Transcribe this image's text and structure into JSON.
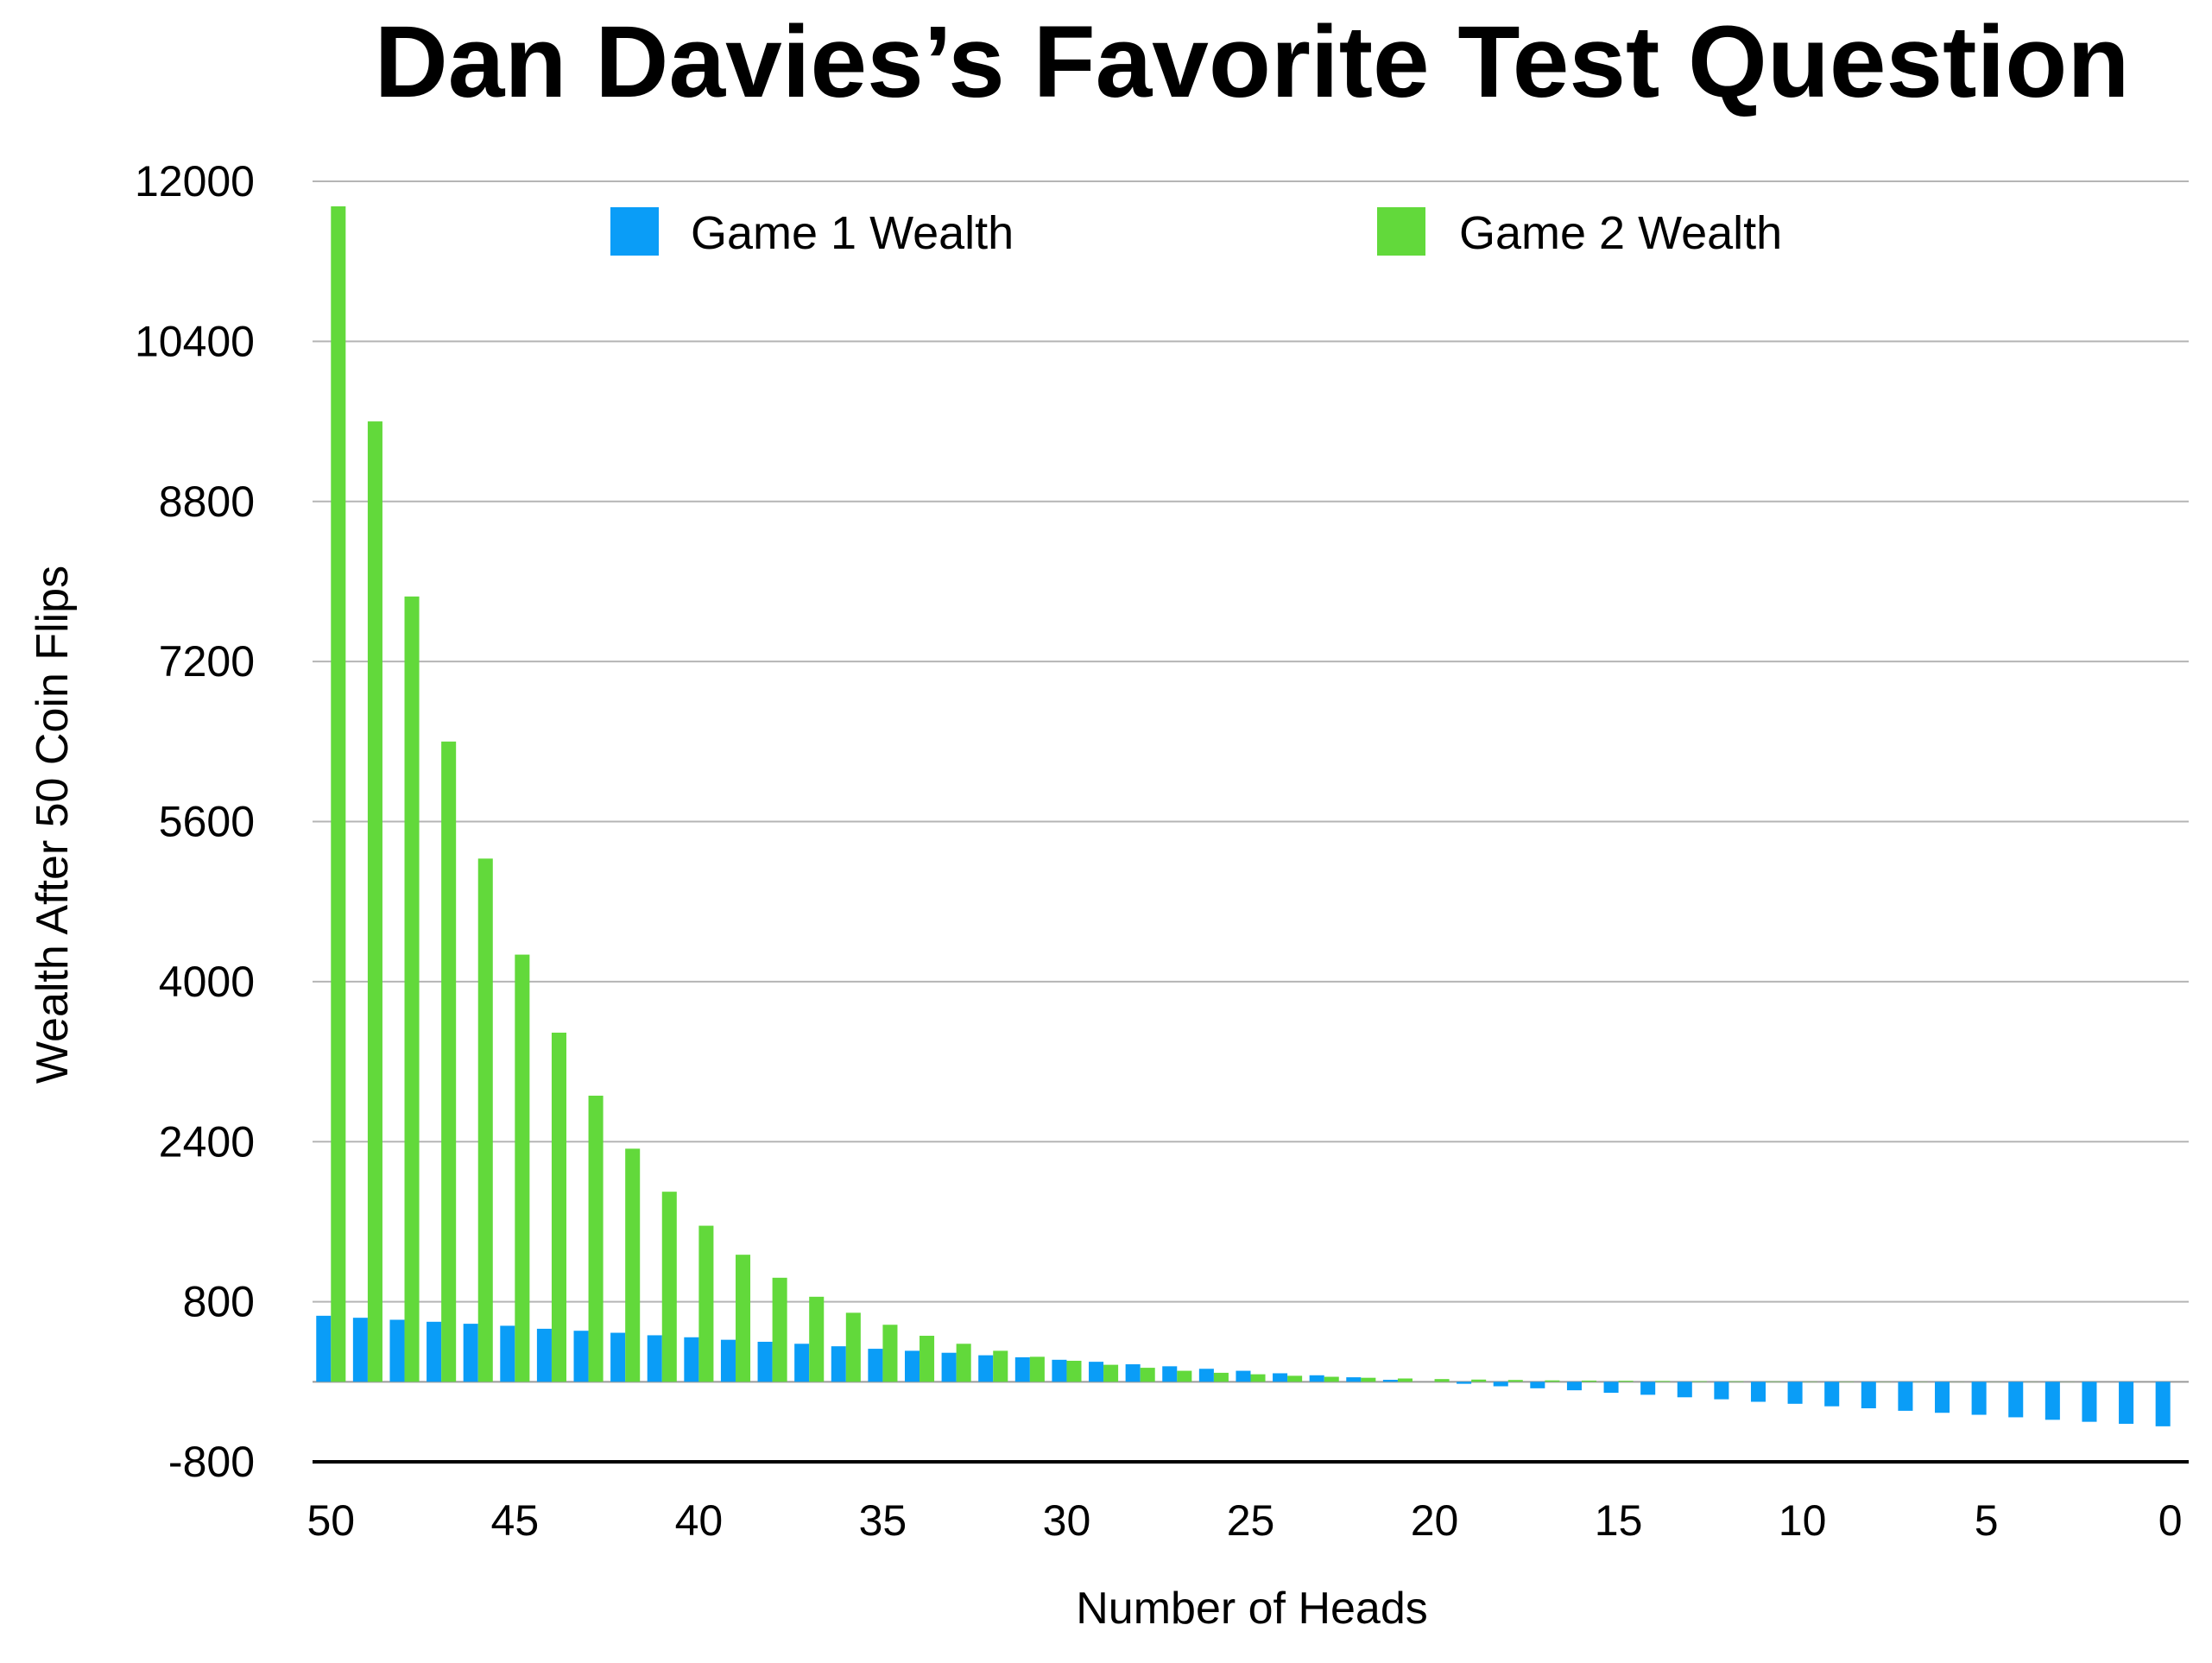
{
  "chart_data": {
    "type": "bar",
    "title": "Dan Davies’s Favorite Test Question",
    "xlabel": "Number of Heads",
    "ylabel": "Wealth After 50 Coin Flips",
    "ylim": [
      -800,
      12000
    ],
    "yticks": [
      -800,
      800,
      2400,
      4000,
      5600,
      7200,
      8800,
      10400,
      12000
    ],
    "xticks": [
      50,
      45,
      40,
      35,
      30,
      25,
      20,
      15,
      10,
      5,
      0
    ],
    "x_order": "descending",
    "grid": true,
    "legend_position": "top",
    "categories": [
      50,
      49,
      48,
      47,
      46,
      45,
      44,
      43,
      42,
      41,
      40,
      39,
      38,
      37,
      36,
      35,
      34,
      33,
      32,
      31,
      30,
      29,
      28,
      27,
      26,
      25,
      24,
      23,
      22,
      21,
      20,
      19,
      18,
      17,
      16,
      15,
      14,
      13,
      12,
      11,
      10,
      9,
      8,
      7,
      6,
      5,
      4,
      3,
      2,
      1,
      0
    ],
    "series": [
      {
        "name": "Game 1 Wealth",
        "color": "#0a9df7",
        "values": [
          660,
          640,
          620,
          600,
          580,
          560,
          530,
          510,
          490,
          465,
          445,
          420,
          400,
          380,
          355,
          330,
          310,
          290,
          265,
          245,
          220,
          200,
          175,
          155,
          130,
          110,
          85,
          65,
          45,
          20,
          0,
          -20,
          -45,
          -65,
          -85,
          -110,
          -130,
          -155,
          -175,
          -200,
          -220,
          -245,
          -265,
          -290,
          -310,
          -330,
          -355,
          -380,
          -400,
          -420,
          -445
        ]
      },
      {
        "name": "Game 2 Wealth",
        "color": "#62d93b",
        "values": [
          11750,
          9600,
          7850,
          6400,
          5230,
          4270,
          3490,
          2860,
          2330,
          1900,
          1560,
          1270,
          1040,
          850,
          690,
          570,
          460,
          380,
          310,
          250,
          210,
          170,
          140,
          110,
          90,
          75,
          60,
          50,
          40,
          33,
          27,
          22,
          18,
          14,
          12,
          10,
          8,
          6,
          5,
          4,
          3,
          3,
          2,
          2,
          1,
          1,
          1,
          1,
          0,
          0,
          0
        ]
      }
    ]
  }
}
